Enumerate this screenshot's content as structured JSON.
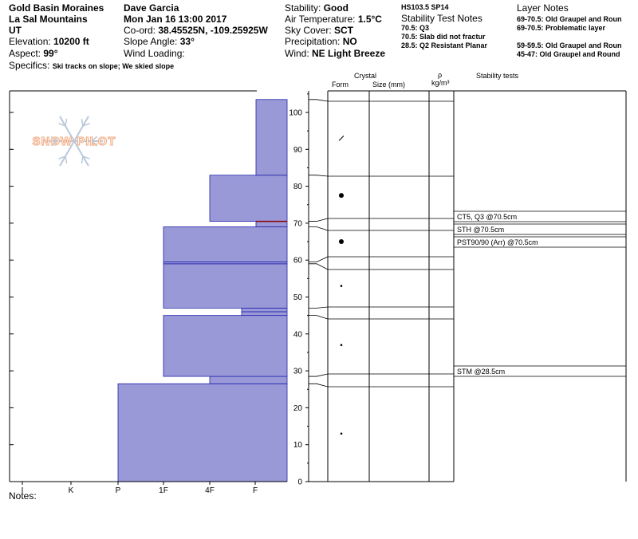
{
  "header": {
    "col1": {
      "location": "Gold Basin Moraines",
      "range": "La Sal Mountains",
      "state": "UT",
      "elevation_label": "Elevation: ",
      "elevation_value": "10200 ft",
      "aspect_label": "Aspect: ",
      "aspect_value": "99°",
      "specifics_label": "Specifics: ",
      "specifics_value": "Ski tracks on slope; We skied slope"
    },
    "col2": {
      "observer": "Dave Garcia",
      "datetime": "Mon Jan 16 13:00 2017",
      "coord_label": "Co-ord: ",
      "coord_value": "38.45525N, -109.25925W",
      "slope_label": "Slope Angle: ",
      "slope_value": "33°",
      "wind_loading_label": "Wind Loading:",
      "wind_loading_value": ""
    },
    "col3": {
      "stability_label": "Stability: ",
      "stability_value": "Good",
      "air_temp_label": "Air Temperature: ",
      "air_temp_value": "1.5°C",
      "sky_label": "Sky Cover: ",
      "sky_value": "SCT",
      "precip_label": "Precipitation: ",
      "precip_value": "NO",
      "wind_label": "Wind: ",
      "wind_value": "NE Light Breeze"
    },
    "col4": {
      "hs": "HS103.5 SP14",
      "title": "Stability Test Notes",
      "notes": [
        "70.5: Q3",
        "70.5: Slab did not fractur",
        "28.5: Q2 Resistant Planar"
      ]
    },
    "col5": {
      "title": "Layer Notes",
      "notes": [
        "69-70.5: Old Graupel and Roun",
        "69-70.5: Problematic layer",
        "59-59.5: Old Graupel and Roun",
        "45-47: Old Graupel and Round"
      ]
    }
  },
  "watermark": "SNOW PILOT",
  "notes_label": "Notes:",
  "columns": {
    "crystal": "Crystal",
    "form": "Form",
    "size": "Size (mm)",
    "rho": "ρ",
    "density": "kg/m³",
    "stability": "Stability tests"
  },
  "colors": {
    "fill": "#9999d8",
    "edge": "#2222aa",
    "layer_line": "#2b2bb0",
    "highlight": "#8b0000"
  },
  "chart_data": {
    "type": "bar",
    "title": "",
    "xlabel": "",
    "ylabel": "",
    "ylim": [
      0,
      105
    ],
    "y_ticks": [
      0,
      10,
      20,
      30,
      40,
      50,
      60,
      70,
      80,
      90,
      100
    ],
    "hardness_scale": [
      "I",
      "K",
      "P",
      "1F",
      "4F",
      "F"
    ],
    "layers": [
      {
        "bottom": 0,
        "top": 26.5,
        "hardness": "P"
      },
      {
        "bottom": 26.5,
        "top": 28.5,
        "hardness": "4F"
      },
      {
        "bottom": 28.5,
        "top": 45,
        "hardness": "1F"
      },
      {
        "bottom": 45,
        "top": 47,
        "hardness": "4F+"
      },
      {
        "bottom": 47,
        "top": 59,
        "hardness": "1F"
      },
      {
        "bottom": 59,
        "top": 59.5,
        "hardness": "1F"
      },
      {
        "bottom": 59.5,
        "top": 69,
        "hardness": "1F"
      },
      {
        "bottom": 69,
        "top": 70.5,
        "hardness": "F-"
      },
      {
        "bottom": 70.5,
        "top": 83,
        "hardness": "4F"
      },
      {
        "bottom": 83,
        "top": 103.5,
        "hardness": "F-"
      }
    ],
    "layer_boundaries": [
      26.5,
      28.5,
      45,
      47,
      59,
      59.5,
      69,
      70.5,
      83,
      103.5
    ],
    "crystal_symbols": [
      {
        "depth": 93,
        "symbol": "slash"
      },
      {
        "depth": 77.5,
        "symbol": "dot-large"
      },
      {
        "depth": 65,
        "symbol": "dot-large"
      },
      {
        "depth": 53,
        "symbol": "dot-small"
      },
      {
        "depth": 37,
        "symbol": "dot-small"
      },
      {
        "depth": 13,
        "symbol": "dot-small"
      }
    ],
    "stability_tests": [
      {
        "depth": 70.5,
        "label": "CT5, Q3 @70.5cm"
      },
      {
        "depth": 70.5,
        "label": "STH @70.5cm"
      },
      {
        "depth": 70.5,
        "label": "PST90/90 (Arr) @70.5cm"
      },
      {
        "depth": 28.5,
        "label": "STM @28.5cm"
      }
    ]
  }
}
